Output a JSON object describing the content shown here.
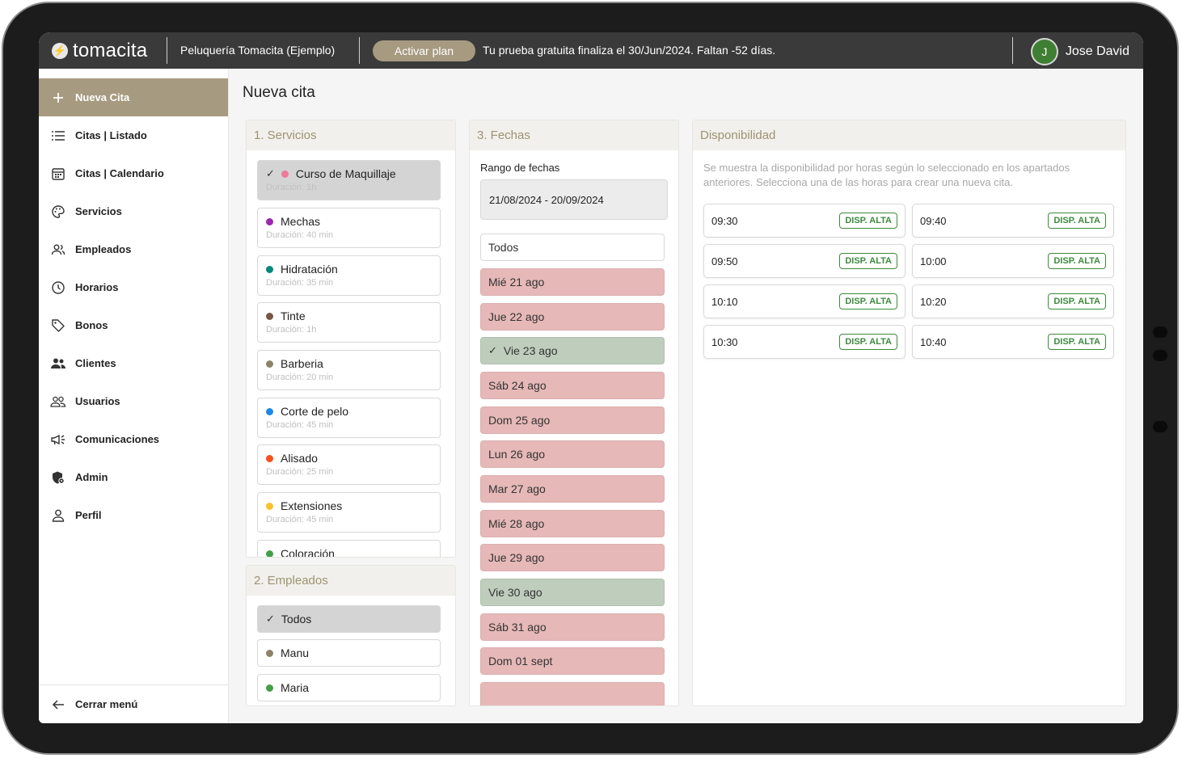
{
  "header": {
    "logo_text": "tomacita",
    "business_name": "Peluquería Tomacita (Ejemplo)",
    "activate_plan_label": "Activar plan",
    "trial_message": "Tu prueba gratuita finaliza el 30/Jun/2024. Faltan -52 días.",
    "user_initial": "J",
    "user_name": "Jose David"
  },
  "sidebar": {
    "items": [
      {
        "label": "Nueva Cita",
        "icon": "plus-icon"
      },
      {
        "label": "Citas | Listado",
        "icon": "list-icon"
      },
      {
        "label": "Citas | Calendario",
        "icon": "calendar-icon"
      },
      {
        "label": "Servicios",
        "icon": "palette-icon"
      },
      {
        "label": "Empleados",
        "icon": "people-icon"
      },
      {
        "label": "Horarios",
        "icon": "clock-icon"
      },
      {
        "label": "Bonos",
        "icon": "tag-icon"
      },
      {
        "label": "Clientes",
        "icon": "group-icon"
      },
      {
        "label": "Usuarios",
        "icon": "users-icon"
      },
      {
        "label": "Comunicaciones",
        "icon": "megaphone-icon"
      },
      {
        "label": "Admin",
        "icon": "shield-icon"
      },
      {
        "label": "Perfil",
        "icon": "person-icon"
      }
    ],
    "close_menu_label": "Cerrar menú"
  },
  "main": {
    "title": "Nueva cita",
    "services": {
      "heading": "1. Servicios",
      "items": [
        {
          "name": "Curso de Maquillaje",
          "duration": "Duración: 1h",
          "color": "#f07a9a",
          "selected": true
        },
        {
          "name": "Mechas",
          "duration": "Duración: 40 min",
          "color": "#9c27b0",
          "selected": false
        },
        {
          "name": "Hidratación",
          "duration": "Duración: 35 min",
          "color": "#00897b",
          "selected": false
        },
        {
          "name": "Tinte",
          "duration": "Duración: 1h",
          "color": "#795548",
          "selected": false
        },
        {
          "name": "Barberia",
          "duration": "Duración: 20 min",
          "color": "#8d8468",
          "selected": false
        },
        {
          "name": "Corte de pelo",
          "duration": "Duración: 45 min",
          "color": "#1e88e5",
          "selected": false
        },
        {
          "name": "Alisado",
          "duration": "Duración: 25 min",
          "color": "#f4511e",
          "selected": false
        },
        {
          "name": "Extensiones",
          "duration": "Duración: 45 min",
          "color": "#fbc02d",
          "selected": false
        },
        {
          "name": "Coloración",
          "duration": "",
          "color": "#43a047",
          "selected": false
        }
      ]
    },
    "employees": {
      "heading": "2. Empleados",
      "items": [
        {
          "name": "Todos",
          "color": "",
          "selected": true
        },
        {
          "name": "Manu",
          "color": "#8d8468",
          "selected": false
        },
        {
          "name": "Maria",
          "color": "#43a047",
          "selected": false
        }
      ]
    },
    "dates": {
      "heading": "3. Fechas",
      "range_label": "Rango de fechas",
      "range_value": "21/08/2024 - 20/09/2024",
      "all_label": "Todos",
      "days": [
        {
          "label": "Mié 21 ago",
          "status": "busy",
          "selected": false
        },
        {
          "label": "Jue 22 ago",
          "status": "busy",
          "selected": false
        },
        {
          "label": "Vie 23 ago",
          "status": "free",
          "selected": true
        },
        {
          "label": "Sáb 24 ago",
          "status": "busy",
          "selected": false
        },
        {
          "label": "Dom 25 ago",
          "status": "busy",
          "selected": false
        },
        {
          "label": "Lun 26 ago",
          "status": "busy",
          "selected": false
        },
        {
          "label": "Mar 27 ago",
          "status": "busy",
          "selected": false
        },
        {
          "label": "Mié 28 ago",
          "status": "busy",
          "selected": false
        },
        {
          "label": "Jue 29 ago",
          "status": "busy",
          "selected": false
        },
        {
          "label": "Vie 30 ago",
          "status": "free",
          "selected": false
        },
        {
          "label": "Sáb 31 ago",
          "status": "busy",
          "selected": false
        },
        {
          "label": "Dom 01 sept",
          "status": "busy",
          "selected": false
        }
      ]
    },
    "availability": {
      "heading": "Disponibilidad",
      "description": "Se muestra la disponibilidad por horas según lo seleccionado en los apartados anteriores. Selecciona una de las horas para crear una nueva cita.",
      "badge_label": "DISP. ALTA",
      "slots": [
        "09:30",
        "09:40",
        "09:50",
        "10:00",
        "10:10",
        "10:20",
        "10:30",
        "10:40"
      ]
    }
  },
  "colors": {
    "accent": "#a69a80",
    "topbar": "#3a3a3a",
    "busy": "#e6b8b8",
    "free": "#bfcdbd",
    "badge": "#3e8a3e"
  }
}
